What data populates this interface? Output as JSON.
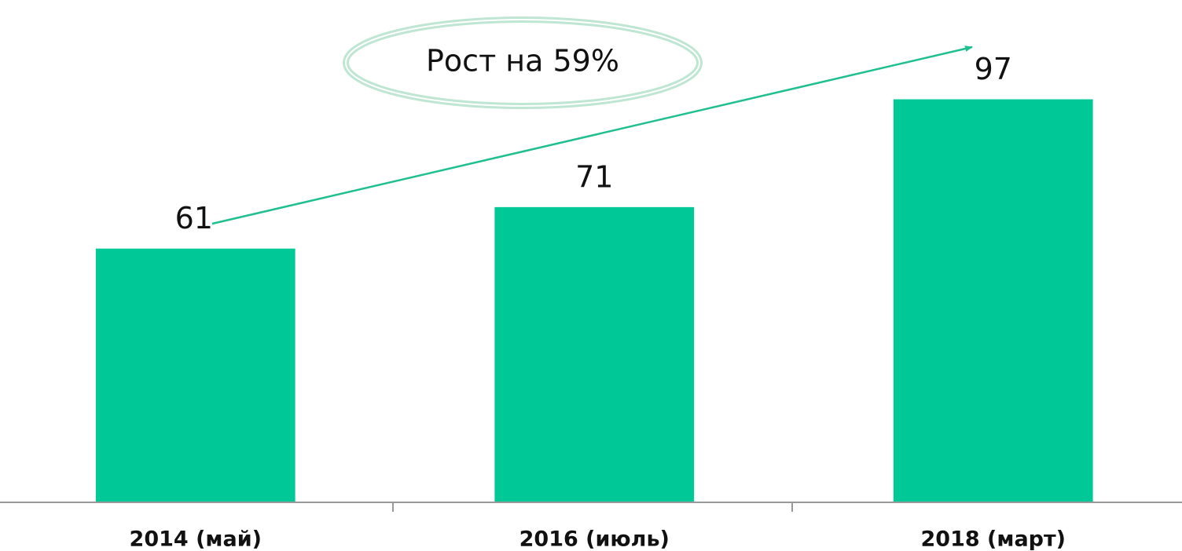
{
  "chart_data": {
    "type": "bar",
    "categories": [
      "2014 (май)",
      "2016 (июль)",
      "2018 (март)"
    ],
    "values": [
      61,
      71,
      97
    ],
    "color": "#00c896",
    "ylim": [
      0,
      120
    ],
    "annotation": "Рост на 59%"
  }
}
